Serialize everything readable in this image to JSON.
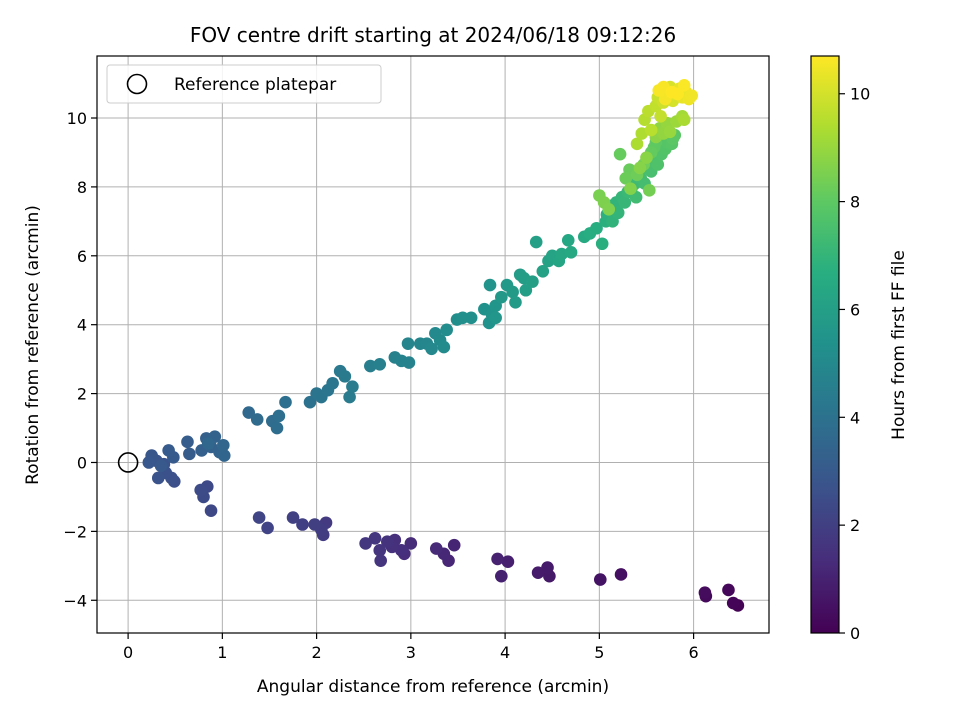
{
  "chart_data": {
    "type": "scatter",
    "title": "FOV centre drift starting at 2024/06/18 09:12:26",
    "xlabel": "Angular distance from reference (arcmin)",
    "ylabel": "Rotation from reference (arcmin)",
    "xlim": [
      -0.33,
      6.8
    ],
    "ylim": [
      -4.95,
      11.8
    ],
    "x_ticks": [
      0,
      1,
      2,
      3,
      4,
      5,
      6
    ],
    "y_ticks": [
      -4,
      -2,
      0,
      2,
      4,
      6,
      8,
      10
    ],
    "x_tick_labels": [
      "0",
      "1",
      "2",
      "3",
      "4",
      "5",
      "6"
    ],
    "y_tick_labels": [
      "−4",
      "−2",
      "0",
      "2",
      "4",
      "6",
      "8",
      "10"
    ],
    "grid": true,
    "legend": {
      "placement": "upper-left",
      "entries": [
        {
          "label": "Reference platepar",
          "marker": "hollow-circle",
          "x": 0,
          "y": 0
        }
      ]
    },
    "colorbar": {
      "label": "Hours from first FF file",
      "colormap": "viridis",
      "range": [
        0,
        10.7
      ],
      "ticks": [
        0,
        2,
        4,
        6,
        8,
        10
      ],
      "tick_labels": [
        "0",
        "2",
        "4",
        "6",
        "8",
        "10"
      ]
    },
    "series": [
      {
        "encoding": "[x_arcmin, y_arcmin, hours]",
        "points": [
          [
            6.47,
            -4.15,
            0.05
          ],
          [
            6.42,
            -4.08,
            0.1
          ],
          [
            6.37,
            -3.7,
            0.18
          ],
          [
            6.13,
            -3.88,
            0.25
          ],
          [
            6.12,
            -3.78,
            0.3
          ],
          [
            5.23,
            -3.25,
            0.45
          ],
          [
            5.01,
            -3.4,
            0.55
          ],
          [
            4.47,
            -3.3,
            0.7
          ],
          [
            4.45,
            -3.05,
            0.75
          ],
          [
            4.35,
            -3.2,
            0.8
          ],
          [
            4.03,
            -2.88,
            0.9
          ],
          [
            3.96,
            -3.3,
            0.95
          ],
          [
            3.92,
            -2.8,
            1.0
          ],
          [
            3.46,
            -2.4,
            1.1
          ],
          [
            3.4,
            -2.85,
            1.15
          ],
          [
            3.35,
            -2.65,
            1.2
          ],
          [
            3.27,
            -2.5,
            1.25
          ],
          [
            3.0,
            -2.35,
            1.3
          ],
          [
            2.93,
            -2.65,
            1.35
          ],
          [
            2.9,
            -2.55,
            1.4
          ],
          [
            2.83,
            -2.25,
            1.45
          ],
          [
            2.8,
            -2.45,
            1.5
          ],
          [
            2.75,
            -2.3,
            1.55
          ],
          [
            2.68,
            -2.85,
            1.6
          ],
          [
            2.67,
            -2.55,
            1.6
          ],
          [
            2.62,
            -2.2,
            1.65
          ],
          [
            2.52,
            -2.35,
            1.7
          ],
          [
            2.1,
            -1.75,
            1.8
          ],
          [
            2.07,
            -2.1,
            1.85
          ],
          [
            2.05,
            -1.95,
            1.9
          ],
          [
            1.98,
            -1.8,
            1.95
          ],
          [
            1.85,
            -1.8,
            2.0
          ],
          [
            1.75,
            -1.6,
            2.05
          ],
          [
            1.48,
            -1.9,
            2.15
          ],
          [
            1.39,
            -1.6,
            2.2
          ],
          [
            0.88,
            -1.4,
            2.3
          ],
          [
            0.84,
            -0.7,
            2.35
          ],
          [
            0.8,
            -1.0,
            2.4
          ],
          [
            0.77,
            -0.8,
            2.45
          ],
          [
            0.49,
            -0.55,
            2.55
          ],
          [
            0.46,
            -0.45,
            2.6
          ],
          [
            0.4,
            -0.3,
            2.65
          ],
          [
            0.32,
            -0.45,
            2.7
          ],
          [
            0.38,
            -0.05,
            2.75
          ],
          [
            0.3,
            0.05,
            2.8
          ],
          [
            0.25,
            0.2,
            2.85
          ],
          [
            0.22,
            0.0,
            2.9
          ],
          [
            0.35,
            -0.1,
            2.95
          ],
          [
            0.48,
            0.15,
            3.0
          ],
          [
            0.43,
            0.35,
            3.05
          ],
          [
            0.65,
            0.25,
            3.1
          ],
          [
            0.63,
            0.6,
            3.15
          ],
          [
            0.78,
            0.35,
            3.2
          ],
          [
            0.83,
            0.7,
            3.25
          ],
          [
            0.88,
            0.45,
            3.3
          ],
          [
            0.92,
            0.75,
            3.35
          ],
          [
            0.97,
            0.3,
            3.4
          ],
          [
            1.02,
            0.2,
            3.45
          ],
          [
            1.01,
            0.5,
            3.5
          ],
          [
            0.85,
            0.55,
            3.55
          ],
          [
            1.28,
            1.45,
            3.65
          ],
          [
            1.37,
            1.25,
            3.7
          ],
          [
            1.53,
            1.2,
            3.75
          ],
          [
            1.58,
            1.0,
            3.8
          ],
          [
            1.6,
            1.35,
            3.85
          ],
          [
            1.67,
            1.75,
            3.9
          ],
          [
            1.93,
            1.75,
            4.0
          ],
          [
            2.0,
            2.0,
            4.05
          ],
          [
            2.05,
            1.9,
            4.1
          ],
          [
            2.12,
            2.1,
            4.15
          ],
          [
            2.17,
            2.3,
            4.2
          ],
          [
            2.25,
            2.65,
            4.3
          ],
          [
            2.3,
            2.5,
            4.35
          ],
          [
            2.35,
            1.9,
            4.4
          ],
          [
            2.38,
            2.2,
            4.45
          ],
          [
            2.57,
            2.8,
            4.55
          ],
          [
            2.67,
            2.85,
            4.6
          ],
          [
            2.83,
            3.05,
            4.65
          ],
          [
            2.9,
            2.95,
            4.7
          ],
          [
            2.98,
            2.9,
            4.75
          ],
          [
            2.97,
            3.45,
            4.8
          ],
          [
            3.1,
            3.45,
            4.85
          ],
          [
            3.17,
            3.45,
            4.9
          ],
          [
            3.22,
            3.3,
            4.95
          ],
          [
            3.26,
            3.75,
            5.0
          ],
          [
            3.31,
            3.55,
            5.05
          ],
          [
            3.35,
            3.35,
            5.1
          ],
          [
            3.38,
            3.85,
            5.15
          ],
          [
            3.49,
            4.15,
            5.2
          ],
          [
            3.55,
            4.2,
            5.25
          ],
          [
            3.64,
            4.2,
            5.3
          ],
          [
            3.78,
            4.45,
            5.35
          ],
          [
            3.83,
            4.05,
            5.4
          ],
          [
            3.86,
            4.3,
            5.45
          ],
          [
            3.84,
            5.15,
            5.5
          ],
          [
            3.9,
            4.55,
            5.55
          ],
          [
            3.9,
            4.2,
            5.6
          ],
          [
            3.96,
            4.8,
            5.65
          ],
          [
            4.02,
            5.15,
            5.7
          ],
          [
            4.08,
            4.95,
            5.75
          ],
          [
            4.11,
            4.65,
            5.8
          ],
          [
            4.16,
            5.45,
            5.85
          ],
          [
            4.2,
            5.35,
            5.9
          ],
          [
            4.22,
            5.0,
            5.95
          ],
          [
            4.29,
            5.25,
            6.0
          ],
          [
            4.33,
            6.4,
            6.05
          ],
          [
            4.4,
            5.55,
            6.1
          ],
          [
            4.46,
            5.85,
            6.15
          ],
          [
            4.5,
            6.0,
            6.2
          ],
          [
            4.57,
            5.85,
            6.25
          ],
          [
            4.6,
            6.05,
            6.3
          ],
          [
            4.67,
            6.45,
            6.35
          ],
          [
            4.7,
            6.1,
            6.4
          ],
          [
            4.84,
            6.55,
            6.5
          ],
          [
            4.9,
            6.65,
            6.6
          ],
          [
            4.97,
            6.8,
            6.65
          ],
          [
            5.03,
            6.35,
            6.7
          ],
          [
            5.07,
            7.0,
            6.75
          ],
          [
            5.08,
            7.2,
            6.8
          ],
          [
            5.12,
            7.45,
            6.85
          ],
          [
            5.14,
            7.0,
            6.9
          ],
          [
            5.18,
            7.55,
            6.95
          ],
          [
            5.2,
            7.25,
            7.0
          ],
          [
            5.24,
            7.7,
            7.05
          ],
          [
            5.27,
            7.55,
            7.1
          ],
          [
            5.3,
            7.85,
            7.15
          ],
          [
            5.34,
            7.95,
            7.2
          ],
          [
            5.38,
            8.1,
            7.25
          ],
          [
            5.39,
            7.7,
            7.3
          ],
          [
            5.44,
            8.25,
            7.35
          ],
          [
            5.48,
            8.1,
            7.4
          ],
          [
            5.5,
            8.55,
            7.45
          ],
          [
            5.55,
            8.45,
            7.5
          ],
          [
            5.56,
            8.75,
            7.55
          ],
          [
            5.6,
            8.8,
            7.6
          ],
          [
            5.62,
            8.65,
            7.65
          ],
          [
            5.66,
            8.95,
            7.7
          ],
          [
            5.7,
            9.1,
            7.75
          ],
          [
            5.72,
            9.3,
            7.8
          ],
          [
            5.77,
            9.25,
            7.85
          ],
          [
            5.8,
            9.5,
            7.9
          ],
          [
            5.78,
            9.4,
            7.95
          ],
          [
            5.6,
            9.3,
            8.0
          ],
          [
            5.58,
            9.15,
            8.05
          ],
          [
            5.55,
            9.0,
            8.1
          ],
          [
            5.22,
            8.95,
            8.15
          ],
          [
            5.32,
            8.5,
            8.2
          ],
          [
            5.28,
            8.25,
            8.25
          ],
          [
            5.4,
            8.35,
            8.3
          ],
          [
            5.47,
            8.65,
            8.35
          ],
          [
            5.53,
            7.9,
            8.4
          ],
          [
            5.0,
            7.75,
            8.5
          ],
          [
            5.05,
            7.55,
            8.55
          ],
          [
            5.1,
            7.35,
            8.6
          ],
          [
            5.33,
            7.95,
            8.65
          ],
          [
            5.43,
            8.55,
            8.7
          ],
          [
            5.5,
            8.85,
            8.75
          ],
          [
            5.6,
            9.45,
            8.8
          ],
          [
            5.64,
            9.7,
            8.85
          ],
          [
            5.68,
            9.55,
            8.9
          ],
          [
            5.72,
            9.85,
            8.95
          ],
          [
            5.75,
            9.6,
            9.0
          ],
          [
            5.82,
            9.9,
            9.1
          ],
          [
            5.88,
            10.05,
            9.2
          ],
          [
            5.9,
            9.95,
            9.3
          ],
          [
            5.4,
            9.25,
            9.35
          ],
          [
            5.45,
            9.55,
            9.4
          ],
          [
            5.48,
            9.95,
            9.5
          ],
          [
            5.55,
            9.65,
            9.55
          ],
          [
            5.52,
            10.2,
            9.6
          ],
          [
            5.6,
            10.35,
            9.7
          ],
          [
            5.65,
            10.05,
            9.75
          ],
          [
            5.62,
            10.6,
            9.8
          ],
          [
            5.68,
            10.45,
            9.9
          ],
          [
            5.72,
            10.75,
            10.0
          ],
          [
            5.78,
            10.5,
            10.05
          ],
          [
            5.75,
            10.9,
            10.1
          ],
          [
            5.8,
            10.7,
            10.2
          ],
          [
            5.85,
            10.85,
            10.3
          ],
          [
            5.88,
            10.6,
            10.35
          ],
          [
            5.92,
            10.75,
            10.4
          ],
          [
            5.95,
            10.55,
            10.45
          ],
          [
            5.98,
            10.65,
            10.5
          ],
          [
            5.7,
            10.55,
            10.55
          ],
          [
            5.63,
            10.8,
            10.6
          ],
          [
            5.68,
            10.9,
            10.62
          ],
          [
            5.9,
            10.95,
            10.65
          ],
          [
            5.83,
            10.7,
            10.68
          ],
          [
            5.77,
            10.75,
            10.7
          ]
        ]
      }
    ]
  }
}
